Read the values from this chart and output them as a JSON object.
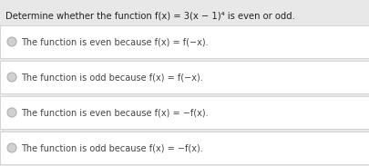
{
  "title": "Determine whether the function f(x) = 3(x − 1)⁴ is even or odd.",
  "options": [
    "The function is even because f(x) = f(−x).",
    "The function is odd because f(x) = f(−x).",
    "The function is even because f(x) = −f(x).",
    "The function is odd because f(x) = −f(x)."
  ],
  "bg_color": "#e8e8e8",
  "box_color": "#ffffff",
  "box_border_color": "#c8c8c8",
  "title_color": "#222222",
  "option_color": "#444444",
  "radio_fill": "#d0d0d0",
  "radio_edge": "#b0b0b0",
  "title_fontsize": 7.2,
  "option_fontsize": 7.0,
  "fig_width": 4.05,
  "fig_height": 1.83
}
